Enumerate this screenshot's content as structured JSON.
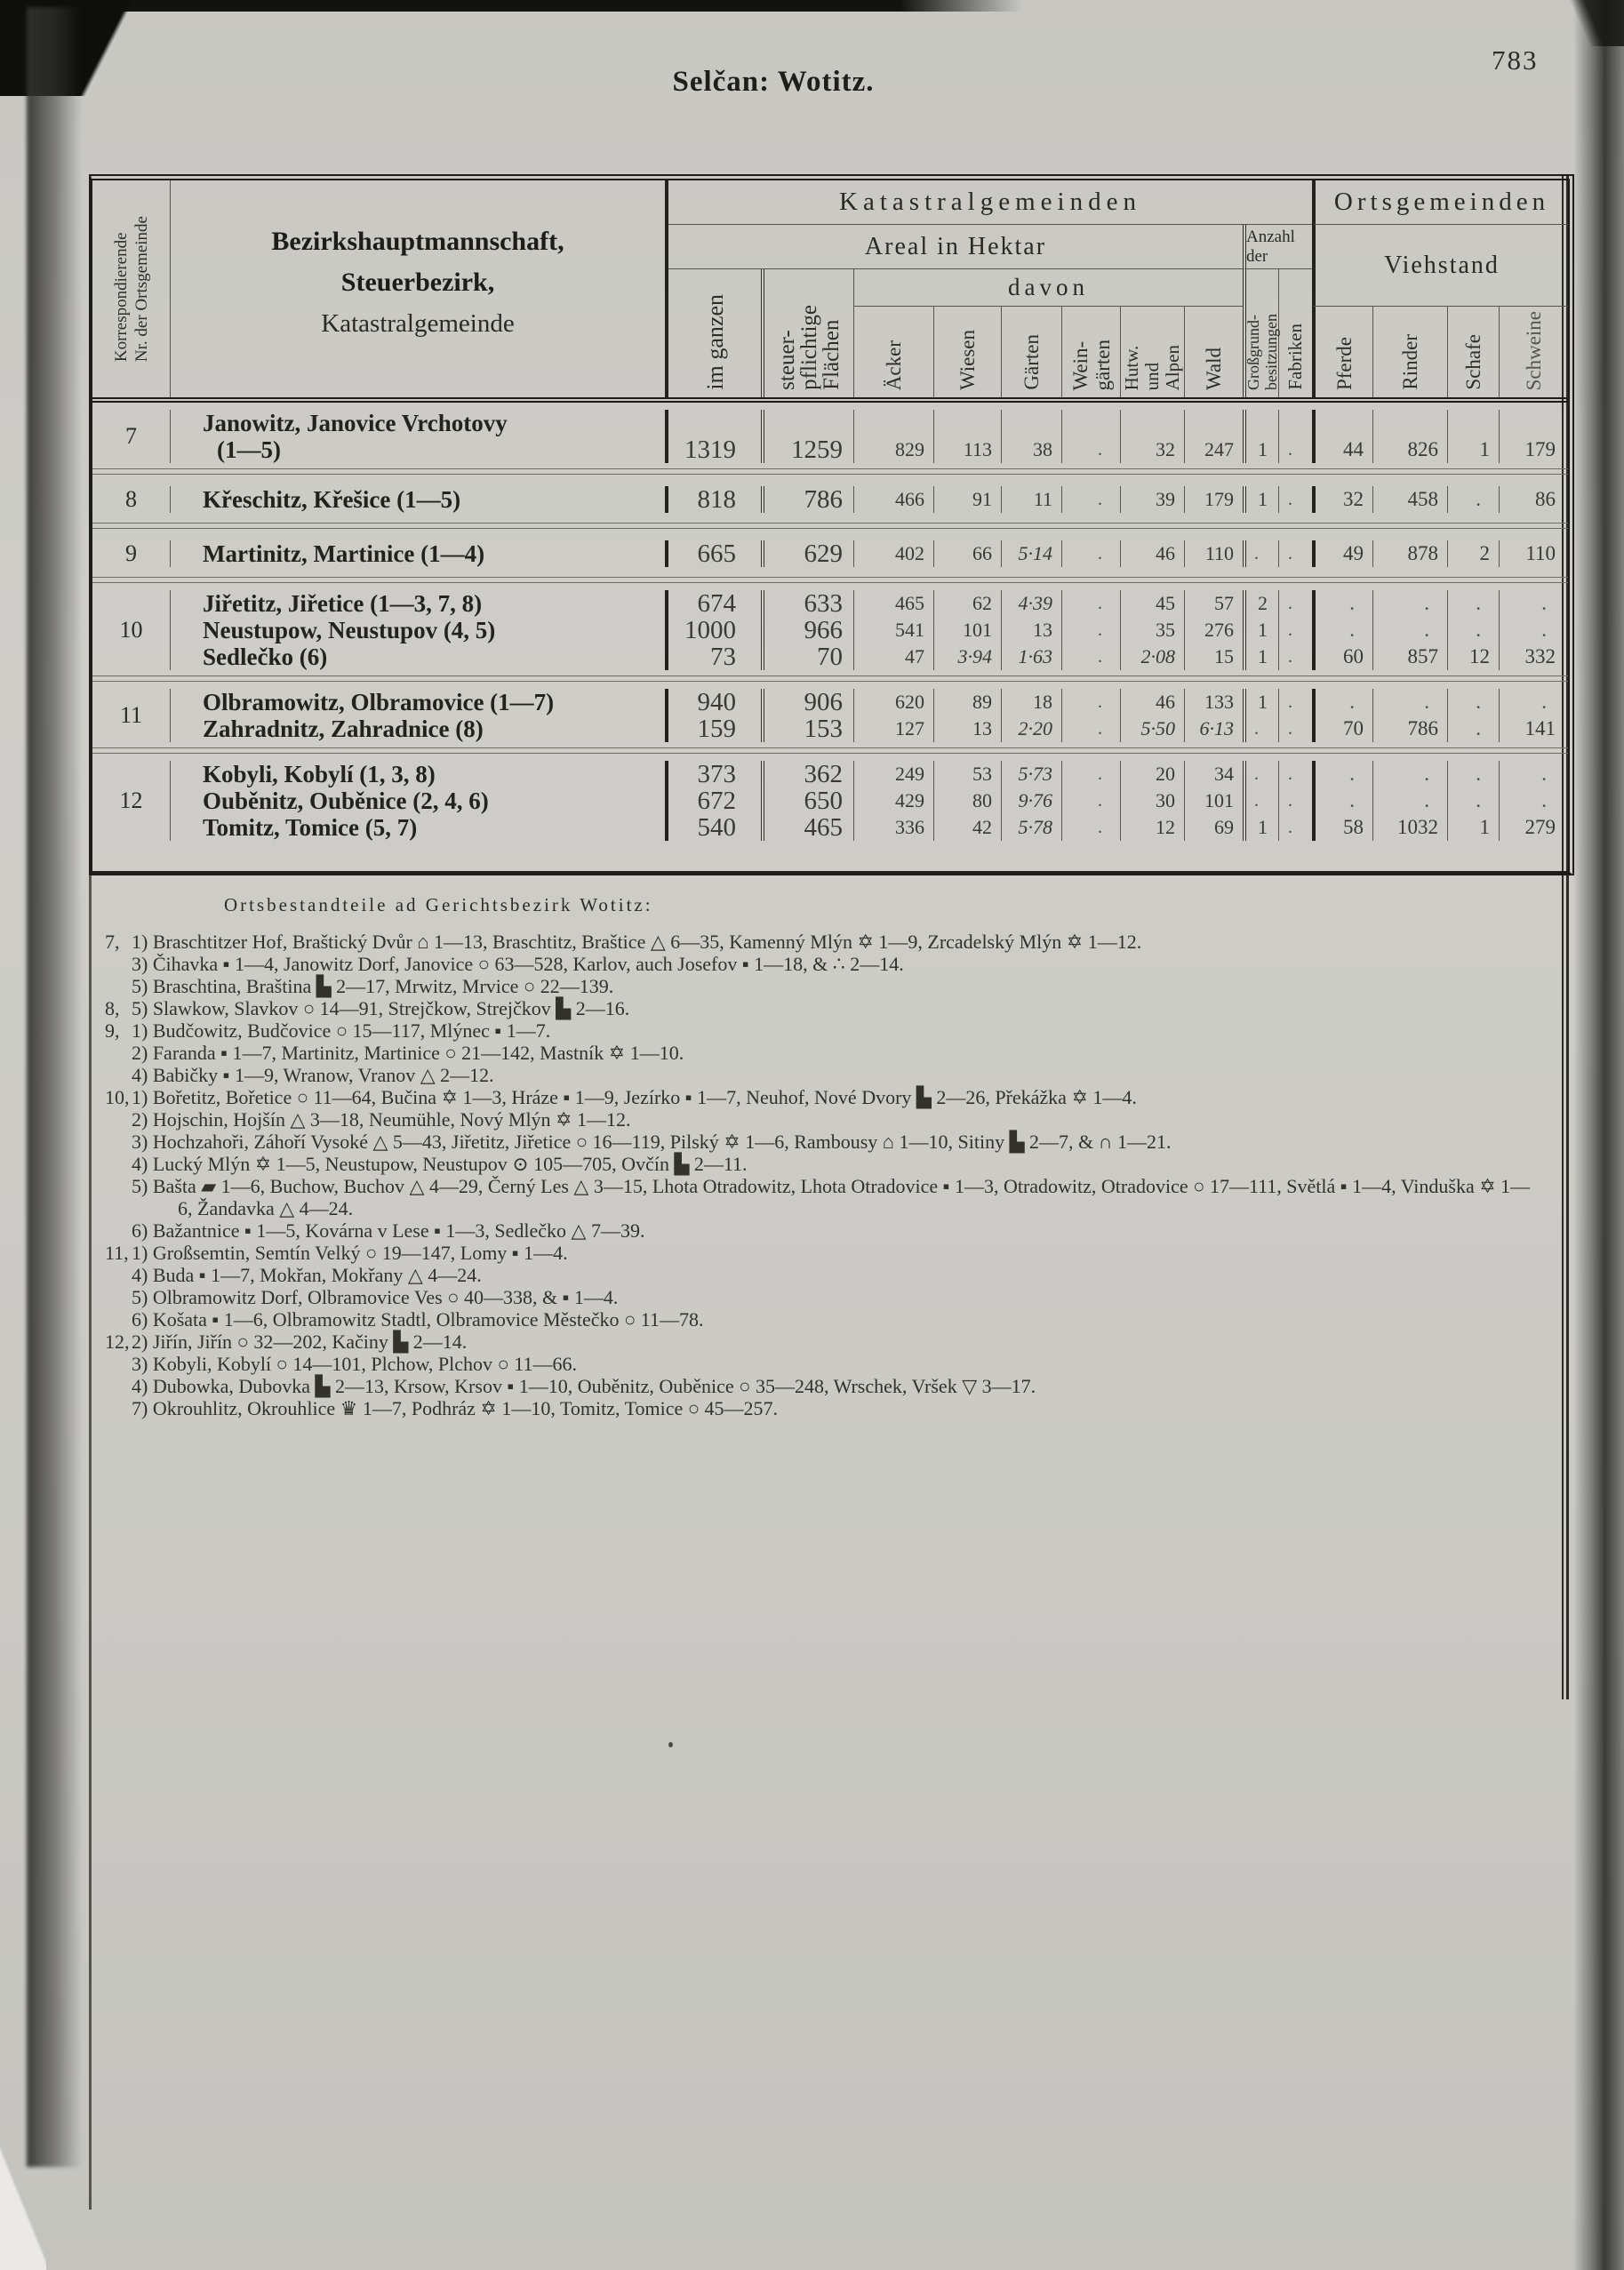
{
  "page": {
    "number": "783",
    "title": "Selčan: Wotitz."
  },
  "table": {
    "header": {
      "nr_col": "Korrespondierende\nNr. der Ortsgemeinde",
      "name_col_line1": "Bezirkshauptmannschaft,",
      "name_col_line2": "Steuerbezirk,",
      "name_col_line3": "Katastralgemeinde",
      "group_kataster": "Katastralgemeinden",
      "group_orts": "Ortsgemeinden",
      "areal": "Areal in Hektar",
      "anzahl": "Anzahl der",
      "davon": "davon",
      "viehstand": "Viehstand",
      "cols": {
        "im_ganzen": "im ganzen",
        "steuerpflichtige": "steuer-\npflichtige\nFlächen",
        "aecker": "Äcker",
        "wiesen": "Wiesen",
        "gaerten": "Gärten",
        "weingaerten": "Wein-\ngärten",
        "hutweiden": "Hutw.\nund\nAlpen",
        "wald": "Wald",
        "grossgrund": "Großgrund-\nbesitzungen",
        "fabriken": "Fabriken",
        "pferde": "Pferde",
        "rinder": "Rinder",
        "schafe": "Schafe",
        "schweine": "Schweine"
      }
    },
    "rows": [
      {
        "nr": "7",
        "entries": [
          {
            "name_lines": [
              "Janowitz, Janovice Vrchotovy",
              "(1—5)"
            ],
            "values": [
              "1319",
              "1259",
              "829",
              "113",
              "38",
              ".",
              "32",
              "247",
              "1",
              ".",
              "44",
              "826",
              "1",
              "179"
            ]
          }
        ]
      },
      {
        "nr": "8",
        "entries": [
          {
            "name_lines": [
              "Křeschitz, Křešice (1—5)"
            ],
            "values": [
              "818",
              "786",
              "466",
              "91",
              "11",
              ".",
              "39",
              "179",
              "1",
              ".",
              "32",
              "458",
              ".",
              "86"
            ]
          }
        ]
      },
      {
        "nr": "9",
        "entries": [
          {
            "name_lines": [
              "Martinitz, Martinice (1—4)"
            ],
            "values": [
              "665",
              "629",
              "402",
              "66",
              "5·14",
              ".",
              "46",
              "110",
              ".",
              ".",
              "49",
              "878",
              "2",
              "110"
            ]
          }
        ]
      },
      {
        "nr": "10",
        "entries": [
          {
            "name_lines": [
              "Jiřetitz, Jiřetice (1—3, 7, 8)"
            ],
            "values": [
              "674",
              "633",
              "465",
              "62",
              "4·39",
              ".",
              "45",
              "57",
              "2",
              ".",
              ".",
              ".",
              ".",
              "."
            ]
          },
          {
            "name_lines": [
              "Neustupow, Neustupov (4, 5)"
            ],
            "values": [
              "1000",
              "966",
              "541",
              "101",
              "13",
              ".",
              "35",
              "276",
              "1",
              ".",
              ".",
              ".",
              ".",
              "."
            ]
          },
          {
            "name_lines": [
              "Sedlečko (6)"
            ],
            "values": [
              "73",
              "70",
              "47",
              "3·94",
              "1·63",
              ".",
              "2·08",
              "15",
              "1",
              ".",
              "60",
              "857",
              "12",
              "332"
            ]
          }
        ]
      },
      {
        "nr": "11",
        "entries": [
          {
            "name_lines": [
              "Olbramowitz, Olbramovice (1—7)"
            ],
            "values": [
              "940",
              "906",
              "620",
              "89",
              "18",
              ".",
              "46",
              "133",
              "1",
              ".",
              ".",
              ".",
              ".",
              "."
            ]
          },
          {
            "name_lines": [
              "Zahradnitz, Zahradnice (8)"
            ],
            "values": [
              "159",
              "153",
              "127",
              "13",
              "2·20",
              ".",
              "5·50",
              "6·13",
              ".",
              ".",
              "70",
              "786",
              ".",
              "141"
            ]
          }
        ]
      },
      {
        "nr": "12",
        "entries": [
          {
            "name_lines": [
              "Kobyli, Kobylí (1, 3, 8)"
            ],
            "values": [
              "373",
              "362",
              "249",
              "53",
              "5·73",
              ".",
              "20",
              "34",
              ".",
              ".",
              ".",
              ".",
              ".",
              "."
            ]
          },
          {
            "name_lines": [
              "Ouběnitz, Ouběnice (2, 4, 6)"
            ],
            "values": [
              "672",
              "650",
              "429",
              "80",
              "9·76",
              ".",
              "30",
              "101",
              ".",
              ".",
              ".",
              ".",
              ".",
              "."
            ]
          },
          {
            "name_lines": [
              "Tomitz, Tomice (5, 7)"
            ],
            "values": [
              "540",
              "465",
              "336",
              "42",
              "5·78",
              ".",
              "12",
              "69",
              "1",
              ".",
              "58",
              "1032",
              "1",
              "279"
            ]
          }
        ]
      }
    ]
  },
  "footnotes": {
    "heading": "Ortsbestandteile ad Gerichtsbezirk Wotitz:",
    "groups": [
      {
        "group": "7,",
        "notes": [
          "1) Braschtitzer Hof, Braštický Dvůr ⌂ 1—13, Braschtitz, Braštice △ 6—35, Kamenný Mlýn ✡ 1—9, Zrcadelský Mlýn ✡ 1—12.",
          "3) Čihavka ▪ 1—4, Janowitz Dorf, Janovice ○ 63—528, Karlov, auch Josefov ▪ 1—18, & ∴ 2—14.",
          "5) Braschtina, Braština ▙ 2—17, Mrwitz, Mrvice ○ 22—139."
        ]
      },
      {
        "group": "8,",
        "notes": [
          "5) Slawkow, Slavkov ○ 14—91, Strejčkow, Strejčkov ▙ 2—16."
        ]
      },
      {
        "group": "9,",
        "notes": [
          "1) Budčowitz, Budčovice ○ 15—117, Mlýnec ▪ 1—7.",
          "2) Faranda ▪ 1—7, Martinitz, Martinice ○ 21—142, Mastník ✡ 1—10.",
          "4) Babičky ▪ 1—9, Wranow, Vranov △ 2—12."
        ]
      },
      {
        "group": "10,",
        "notes": [
          "1) Bořetitz, Bořetice ○ 11—64, Bučina ✡ 1—3, Hráze ▪ 1—9, Jezírko ▪ 1—7, Neuhof, Nové Dvory ▙ 2—26, Překážka ✡ 1—4.",
          "2) Hojschin, Hojšín △ 3—18, Neumühle, Nový Mlýn ✡ 1—12.",
          "3) Hochzahoři, Záhoří Vysoké △ 5—43, Jiřetitz, Jiřetice ○ 16—119, Pilský ✡ 1—6, Rambousy ⌂ 1—10, Sitiny ▙ 2—7, & ∩ 1—21.",
          "4) Lucký Mlýn ✡ 1—5, Neustupow, Neustupov ⊙ 105—705, Ovčín ▙ 2—11.",
          "5) Bašta ▰ 1—6, Buchow, Buchov △ 4—29, Černý Les △ 3—15, Lhota Otradowitz, Lhota Otradovice ▪ 1—3, Otradowitz, Otradovice ○ 17—111, Světlá ▪ 1—4, Vinduška ✡ 1—6, Žandavka △ 4—24.",
          "6) Bažantnice ▪ 1—5, Kovárna v Lese ▪ 1—3, Sedlečko △ 7—39."
        ]
      },
      {
        "group": "11,",
        "notes": [
          "1) Großsemtin, Semtín Velký ○ 19—147, Lomy ▪ 1—4.",
          "4) Buda ▪ 1—7, Mokřan, Mokřany △ 4—24.",
          "5) Olbramowitz Dorf, Olbramovice Ves ○ 40—338, & ▪ 1—4.",
          "6) Košata ▪ 1—6, Olbramowitz Stadtl, Olbramovice Městečko ○ 11—78."
        ]
      },
      {
        "group": "12,",
        "notes": [
          "2) Jiřín, Jiřín ○ 32—202, Kačiny ▙ 2—14.",
          "3) Kobyli, Kobylí ○ 14—101, Plchow, Plchov ○ 11—66.",
          "4) Dubowka, Dubovka ▙ 2—13, Krsow, Krsov ▪ 1—10, Ouběnitz, Ouběnice ○ 35—248, Wrschek, Vršek ▽ 3—17.",
          "7) Okrouhlitz, Okrouhlice ♛ 1—7, Podhráz ✡ 1—10, Tomitz, Tomice ○ 45—257."
        ]
      }
    ]
  }
}
